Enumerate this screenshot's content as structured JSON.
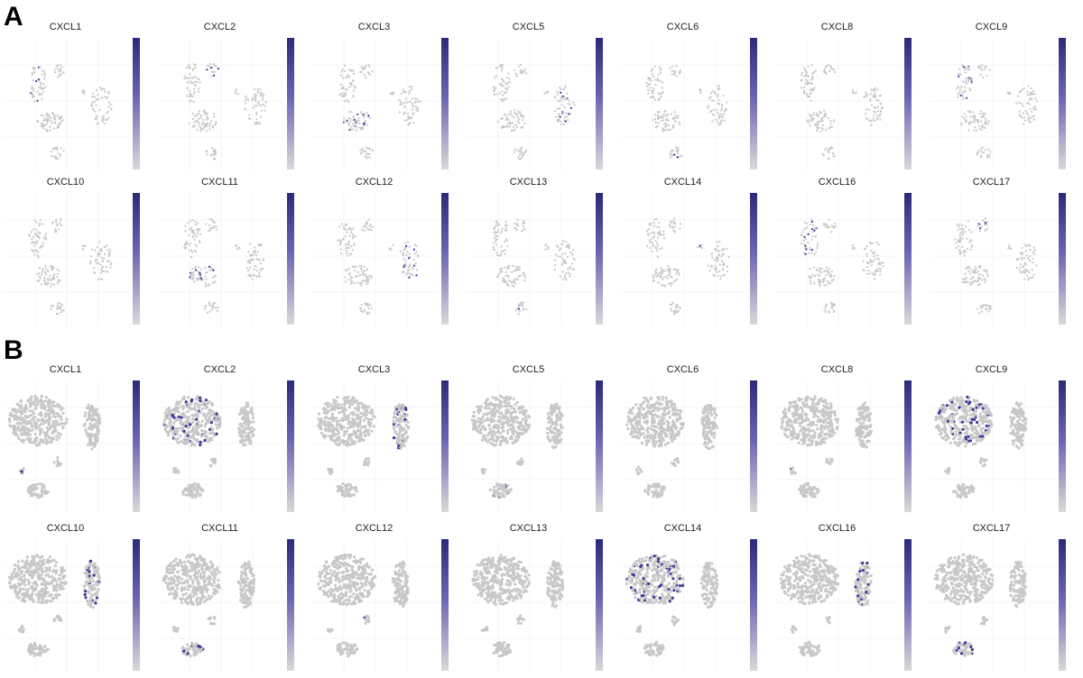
{
  "panels": [
    {
      "letter": "A",
      "genes_row1": [
        "CXCL1",
        "CXCL2",
        "CXCL3",
        "CXCL5",
        "CXCL6",
        "CXCL8",
        "CXCL9"
      ],
      "genes_row2": [
        "CXCL10",
        "CXCL11",
        "CXCL12",
        "CXCL13",
        "CXCL14",
        "CXCL16",
        "CXCL17"
      ]
    },
    {
      "letter": "B",
      "genes_row1": [
        "CXCL1",
        "CXCL2",
        "CXCL3",
        "CXCL5",
        "CXCL6",
        "CXCL8",
        "CXCL9"
      ],
      "genes_row2": [
        "CXCL10",
        "CXCL11",
        "CXCL12",
        "CXCL13",
        "CXCL14",
        "CXCL16",
        "CXCL17"
      ]
    }
  ],
  "colors": {
    "low": "#d9d9d9",
    "high": "#2b2a7a",
    "cell": "#c8c8c8",
    "expressed": "#3d3a9a"
  }
}
